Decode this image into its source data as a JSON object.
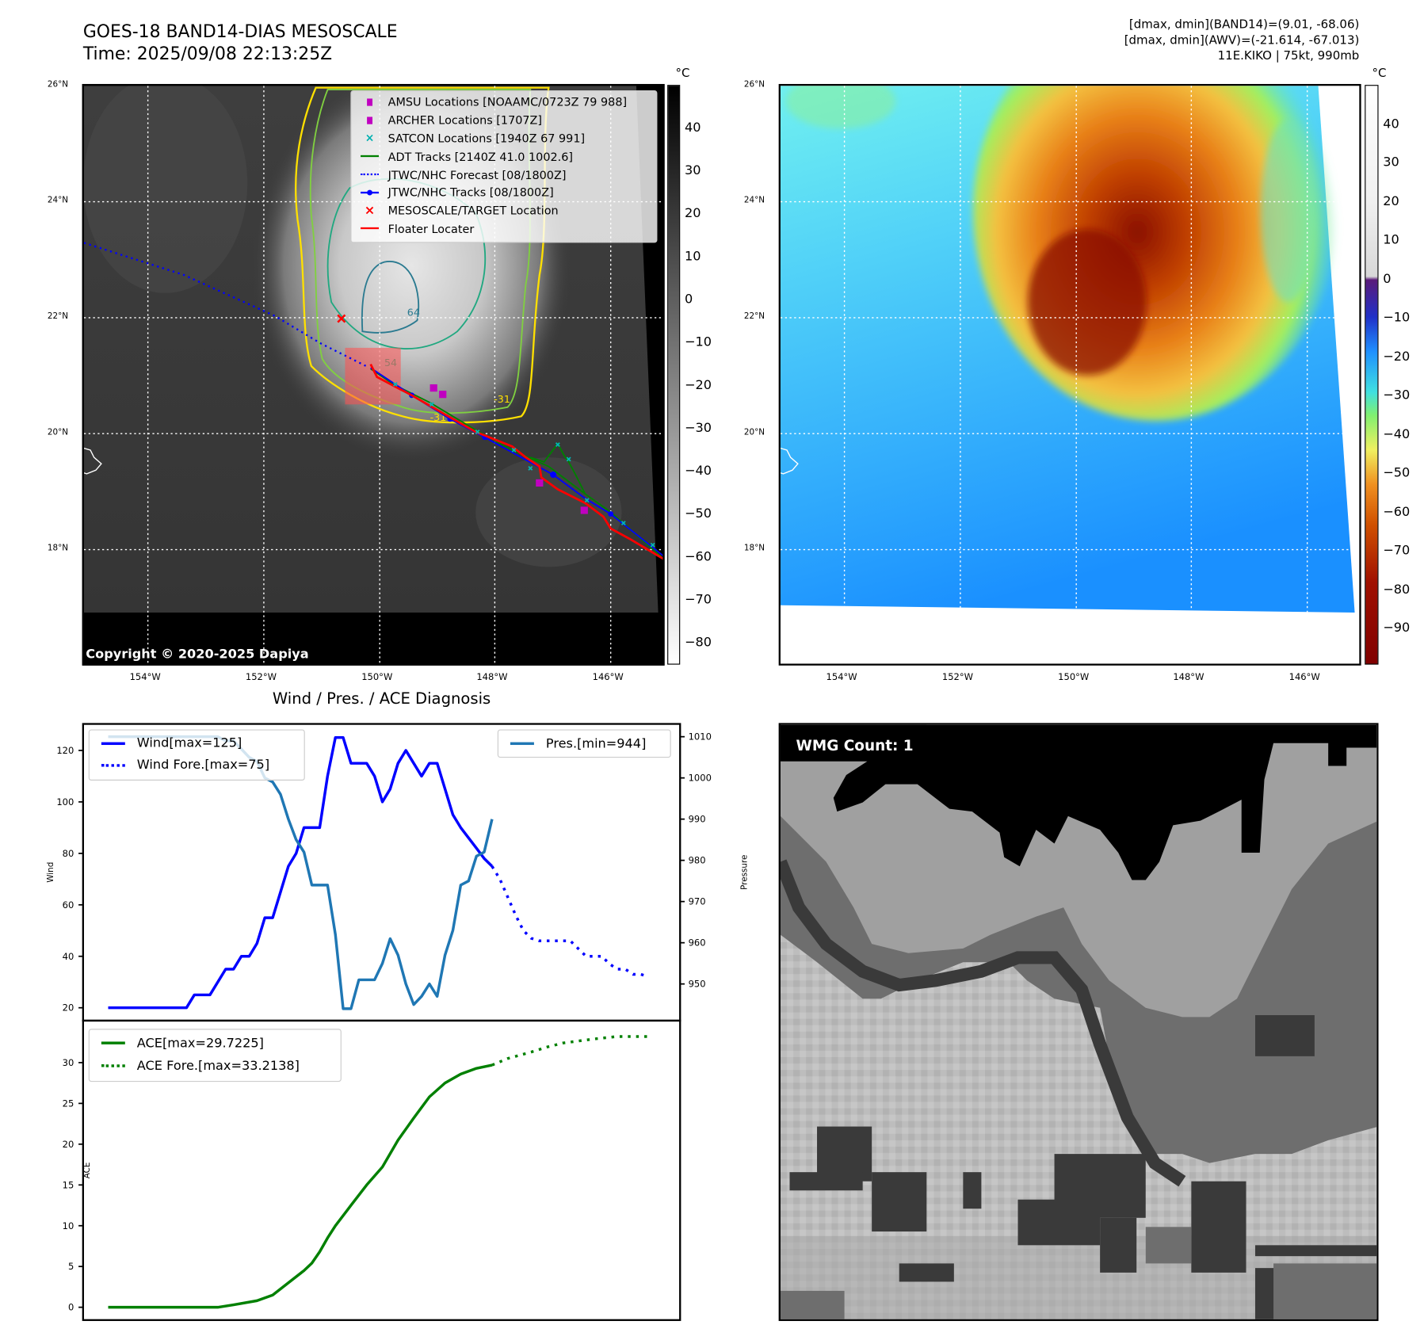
{
  "header": {
    "title": "GOES-18 BAND14-DIAS MESOSCALE",
    "time": "Time: 2025/09/08 22:13:25Z",
    "stats_line1": "[dmax, dmin](BAND14)=(9.01, -68.06)",
    "stats_line2": "[dmax, dmin](AWV)=(-21.614, -67.013)",
    "stats_line3": "11E.KIKO | 75kt, 990mb"
  },
  "map": {
    "lat_labels": [
      "26°N",
      "24°N",
      "22°N",
      "20°N",
      "18°N"
    ],
    "lon_labels": [
      "154°W",
      "152°W",
      "150°W",
      "148°W",
      "146°W"
    ],
    "copyright": "Copyright © 2020-2025 Dapiya",
    "contour_labels": [
      "64",
      "54",
      "-31",
      "-31"
    ],
    "legend": [
      {
        "label": "AMSU Locations [NOAAMC/0723Z 79 988]",
        "color": "#c000c0",
        "symbol": "square"
      },
      {
        "label": "ARCHER Locations [1707Z]",
        "color": "#c000c0",
        "symbol": "square"
      },
      {
        "label": "SATCON Locations [1940Z 67 991]",
        "color": "#00b0b0",
        "symbol": "x"
      },
      {
        "label": "ADT Tracks [2140Z 41.0 1002.6]",
        "color": "#008000",
        "symbol": "line"
      },
      {
        "label": "JTWC/NHC Forecast [08/1800Z]",
        "color": "#0000ff",
        "symbol": "dotted"
      },
      {
        "label": "JTWC/NHC Tracks [08/1800Z]",
        "color": "#0000ff",
        "symbol": "line-dot"
      },
      {
        "label": "MESOSCALE/TARGET Location",
        "color": "#ff0000",
        "symbol": "x"
      },
      {
        "label": "Floater Locater",
        "color": "#ff0000",
        "symbol": "line"
      }
    ]
  },
  "colorbar_left": {
    "unit": "°C",
    "labels": [
      "40",
      "30",
      "20",
      "10",
      "0",
      "−10",
      "−20",
      "−30",
      "−40",
      "−50",
      "−60",
      "−70",
      "−80"
    ]
  },
  "colorbar_right": {
    "unit": "°C",
    "labels": [
      "40",
      "30",
      "20",
      "10",
      "0",
      "−10",
      "−20",
      "−30",
      "−40",
      "−50",
      "−60",
      "−70",
      "−80",
      "−90"
    ]
  },
  "wmg": {
    "label": "WMG Count: 1"
  },
  "chart_data": [
    {
      "type": "line",
      "title": "Wind / Pres. / ACE Diagnosis",
      "ylabel": "Wind",
      "ylabel_right": "Pressure",
      "ylim": [
        15,
        130.3
      ],
      "ylim_right": [
        941.1,
        1013.1
      ],
      "xlim": [
        -3.2,
        73
      ],
      "yticks": [
        20,
        40,
        60,
        80,
        100,
        120
      ],
      "yticks_right": [
        950,
        960,
        970,
        980,
        990,
        1000,
        1010
      ],
      "legend_left": [
        "Wind[max=125]",
        "Wind Fore.[max=75]"
      ],
      "legend_right": [
        "Pres.[min=944]"
      ],
      "series": [
        {
          "name": "Wind",
          "color": "#0000ff",
          "style": "solid",
          "axis": "left",
          "points": [
            [
              0,
              20
            ],
            [
              10,
              20
            ],
            [
              11,
              25
            ],
            [
              13,
              25
            ],
            [
              15,
              35
            ],
            [
              16,
              35
            ],
            [
              17,
              40
            ],
            [
              18,
              40
            ],
            [
              19,
              45
            ],
            [
              20,
              55
            ],
            [
              21,
              55
            ],
            [
              22,
              65
            ],
            [
              23,
              75
            ],
            [
              24,
              80
            ],
            [
              25,
              90
            ],
            [
              27,
              90
            ],
            [
              28,
              110
            ],
            [
              29,
              125
            ],
            [
              30,
              125
            ],
            [
              31,
              115
            ],
            [
              33,
              115
            ],
            [
              34,
              110
            ],
            [
              35,
              100
            ],
            [
              36,
              105
            ],
            [
              37,
              115
            ],
            [
              38,
              120
            ],
            [
              39,
              115
            ],
            [
              40,
              110
            ],
            [
              41,
              115
            ],
            [
              42,
              115
            ],
            [
              43,
              105
            ],
            [
              44,
              95
            ],
            [
              45,
              90
            ],
            [
              47,
              82
            ],
            [
              48,
              78
            ],
            [
              49,
              75
            ]
          ]
        },
        {
          "name": "Wind Fore.",
          "color": "#0000ff",
          "style": "dotted",
          "axis": "left",
          "points": [
            [
              49,
              75
            ],
            [
              50,
              70
            ],
            [
              51,
              63
            ],
            [
              52,
              56
            ],
            [
              53,
              50
            ],
            [
              54,
              47
            ],
            [
              55,
              46
            ],
            [
              56,
              46
            ],
            [
              58,
              46
            ],
            [
              59,
              46
            ],
            [
              60,
              43
            ],
            [
              61,
              40
            ],
            [
              63,
              40
            ],
            [
              64,
              37
            ],
            [
              65,
              35
            ],
            [
              66,
              35
            ],
            [
              67,
              33
            ],
            [
              68,
              33
            ],
            [
              69,
              32
            ]
          ]
        },
        {
          "name": "Pres.",
          "color": "#1f77b4",
          "style": "solid",
          "axis": "right",
          "points": [
            [
              0,
              1010
            ],
            [
              14,
              1010
            ],
            [
              15,
              1009
            ],
            [
              16,
              1009
            ],
            [
              17,
              1007
            ],
            [
              18,
              1005
            ],
            [
              19,
              1004
            ],
            [
              20,
              1000
            ],
            [
              21,
              999
            ],
            [
              22,
              996
            ],
            [
              23,
              990
            ],
            [
              24,
              985
            ],
            [
              25,
              982
            ],
            [
              26,
              974
            ],
            [
              28,
              974
            ],
            [
              29,
              962
            ],
            [
              30,
              944
            ],
            [
              31,
              944
            ],
            [
              32,
              951
            ],
            [
              34,
              951
            ],
            [
              35,
              955
            ],
            [
              36,
              961
            ],
            [
              37,
              957
            ],
            [
              38,
              950
            ],
            [
              39,
              945
            ],
            [
              40,
              947
            ],
            [
              41,
              950
            ],
            [
              42,
              947
            ],
            [
              43,
              957
            ],
            [
              44,
              963
            ],
            [
              45,
              974
            ],
            [
              46,
              975
            ],
            [
              47,
              981
            ],
            [
              48,
              982
            ],
            [
              49,
              990
            ]
          ]
        }
      ]
    },
    {
      "type": "line",
      "ylabel": "ACE",
      "ylim": [
        -1.57,
        35.15
      ],
      "xlim": [
        -3.2,
        73
      ],
      "yticks": [
        0,
        5,
        10,
        15,
        20,
        25,
        30
      ],
      "legend": [
        "ACE[max=29.7225]",
        "ACE Fore.[max=33.2138]"
      ],
      "series": [
        {
          "name": "ACE",
          "color": "#008000",
          "style": "solid",
          "points": [
            [
              0,
              0
            ],
            [
              14,
              0
            ],
            [
              16,
              0.3
            ],
            [
              19,
              0.8
            ],
            [
              21,
              1.5
            ],
            [
              23,
              3
            ],
            [
              25,
              4.5
            ],
            [
              26,
              5.4
            ],
            [
              27,
              6.8
            ],
            [
              28,
              8.5
            ],
            [
              29,
              10
            ],
            [
              31,
              12.5
            ],
            [
              33,
              15
            ],
            [
              35,
              17.2
            ],
            [
              37,
              20.5
            ],
            [
              39,
              23.2
            ],
            [
              41,
              25.8
            ],
            [
              43,
              27.5
            ],
            [
              45,
              28.6
            ],
            [
              47,
              29.3
            ],
            [
              49,
              29.7
            ]
          ]
        },
        {
          "name": "ACE Fore.",
          "color": "#008000",
          "style": "dotted",
          "points": [
            [
              49,
              29.7
            ],
            [
              51,
              30.5
            ],
            [
              54,
              31.3
            ],
            [
              56,
              31.9
            ],
            [
              58,
              32.4
            ],
            [
              62,
              32.9
            ],
            [
              65,
              33.2
            ],
            [
              69,
              33.2
            ]
          ]
        }
      ]
    }
  ]
}
